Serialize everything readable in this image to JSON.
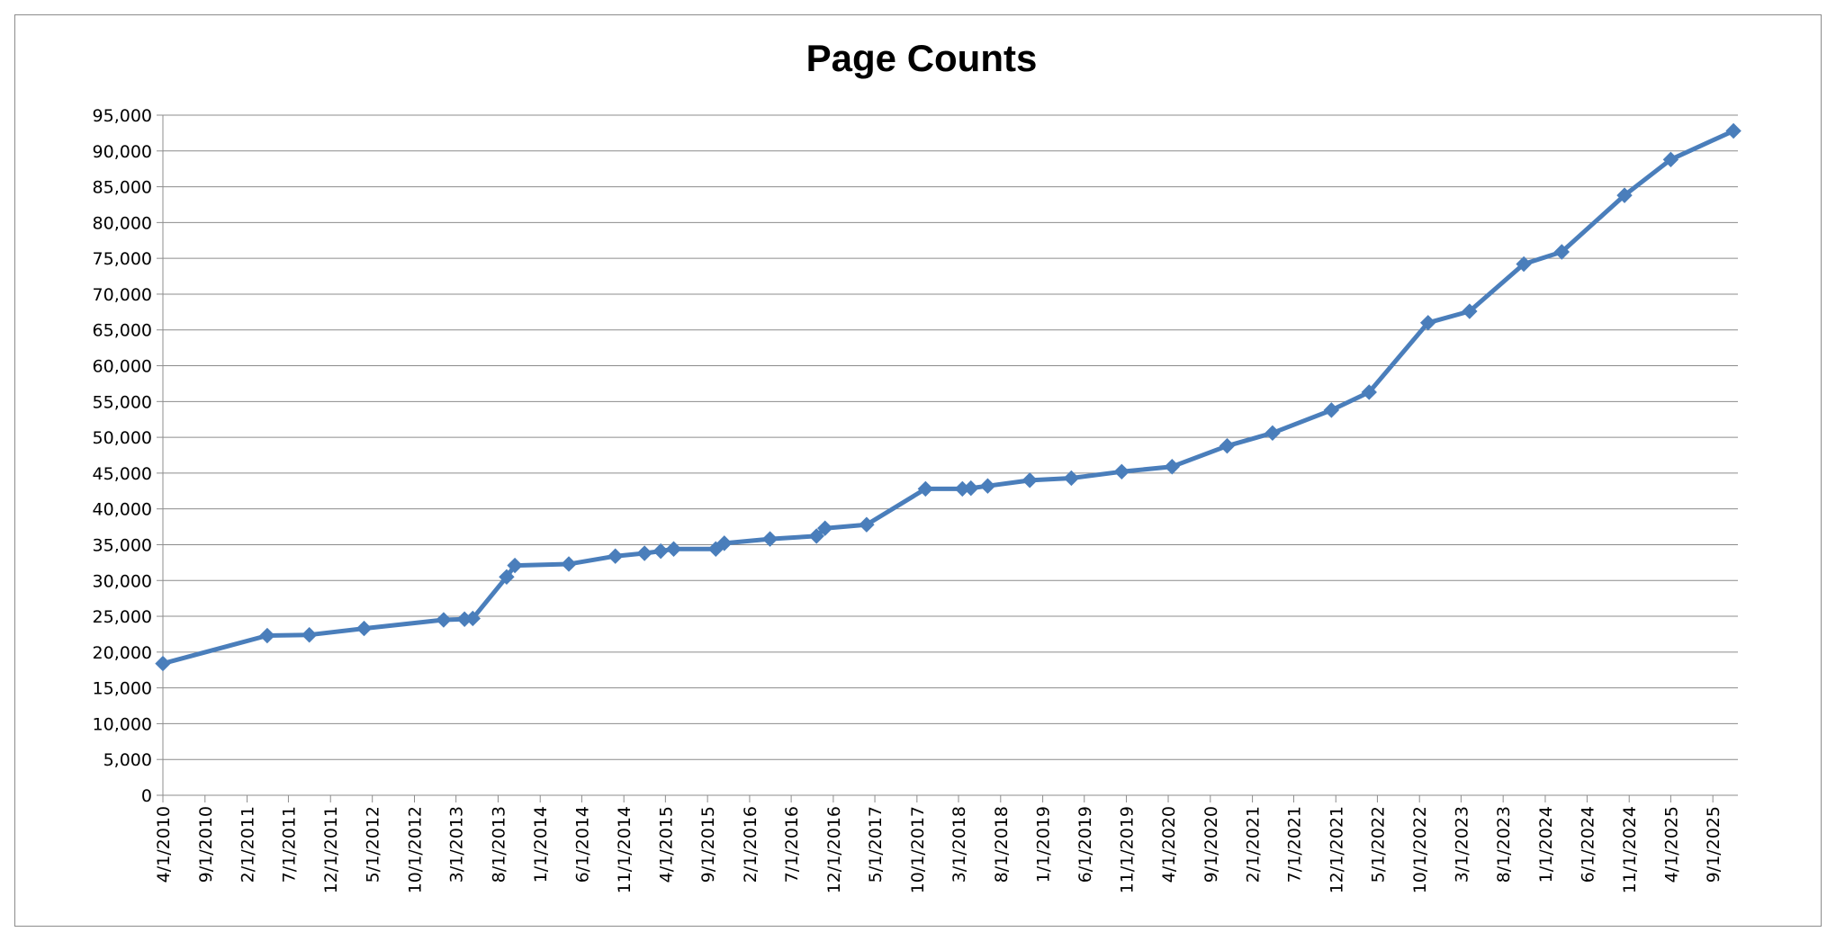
{
  "chart_data": {
    "type": "line",
    "title": "Page Counts",
    "xlabel": "",
    "ylabel": "",
    "ylim": [
      0,
      95000
    ],
    "y_ticks": [
      0,
      5000,
      10000,
      15000,
      20000,
      25000,
      30000,
      35000,
      40000,
      45000,
      50000,
      55000,
      60000,
      65000,
      70000,
      75000,
      80000,
      85000,
      90000,
      95000
    ],
    "y_tick_labels": [
      "0",
      "5,000",
      "10,000",
      "15,000",
      "20,000",
      "25,000",
      "30,000",
      "35,000",
      "40,000",
      "45,000",
      "50,000",
      "55,000",
      "60,000",
      "65,000",
      "70,000",
      "75,000",
      "80,000",
      "85,000",
      "90,000",
      "95,000"
    ],
    "xlim": [
      "4/1/2010",
      "12/1/2025"
    ],
    "x_tick_labels": [
      "4/1/2010",
      "9/1/2010",
      "2/1/2011",
      "7/1/2011",
      "12/1/2011",
      "5/1/2012",
      "10/1/2012",
      "3/1/2013",
      "8/1/2013",
      "1/1/2014",
      "6/1/2014",
      "11/1/2014",
      "4/1/2015",
      "9/1/2015",
      "2/1/2016",
      "7/1/2016",
      "12/1/2016",
      "5/1/2017",
      "10/1/2017",
      "3/1/2018",
      "8/1/2018",
      "1/1/2019",
      "6/1/2019",
      "11/1/2019",
      "4/1/2020",
      "9/1/2020",
      "2/1/2021",
      "7/1/2021",
      "12/1/2021",
      "5/1/2022",
      "10/1/2022",
      "3/1/2023",
      "8/1/2023",
      "1/1/2024",
      "6/1/2024",
      "11/1/2024",
      "4/1/2025",
      "9/1/2025"
    ],
    "grid": true,
    "legend": "none",
    "series": [
      {
        "color": "#4a7ebb",
        "points": [
          {
            "x": "4/1/2010",
            "y": 18400
          },
          {
            "x": "4/15/2011",
            "y": 22300
          },
          {
            "x": "9/15/2011",
            "y": 22400
          },
          {
            "x": "4/1/2012",
            "y": 23300
          },
          {
            "x": "1/15/2013",
            "y": 24500
          },
          {
            "x": "4/1/2013",
            "y": 24600
          },
          {
            "x": "5/1/2013",
            "y": 24700
          },
          {
            "x": "9/1/2013",
            "y": 30500
          },
          {
            "x": "10/1/2013",
            "y": 32100
          },
          {
            "x": "4/15/2014",
            "y": 32300
          },
          {
            "x": "10/1/2014",
            "y": 33400
          },
          {
            "x": "1/15/2015",
            "y": 33800
          },
          {
            "x": "3/15/2015",
            "y": 34100
          },
          {
            "x": "5/1/2015",
            "y": 34400
          },
          {
            "x": "10/1/2015",
            "y": 34400
          },
          {
            "x": "11/1/2015",
            "y": 35200
          },
          {
            "x": "4/15/2016",
            "y": 35800
          },
          {
            "x": "10/1/2016",
            "y": 36200
          },
          {
            "x": "11/1/2016",
            "y": 37300
          },
          {
            "x": "4/1/2017",
            "y": 37800
          },
          {
            "x": "11/1/2017",
            "y": 42800
          },
          {
            "x": "3/15/2018",
            "y": 42800
          },
          {
            "x": "4/15/2018",
            "y": 42900
          },
          {
            "x": "6/15/2018",
            "y": 43200
          },
          {
            "x": "11/15/2018",
            "y": 44000
          },
          {
            "x": "4/15/2019",
            "y": 44300
          },
          {
            "x": "10/15/2019",
            "y": 45200
          },
          {
            "x": "4/15/2020",
            "y": 45900
          },
          {
            "x": "11/1/2020",
            "y": 48800
          },
          {
            "x": "4/15/2021",
            "y": 50600
          },
          {
            "x": "11/15/2021",
            "y": 53800
          },
          {
            "x": "4/1/2022",
            "y": 56300
          },
          {
            "x": "11/1/2022",
            "y": 66000
          },
          {
            "x": "4/1/2023",
            "y": 67600
          },
          {
            "x": "10/15/2023",
            "y": 74200
          },
          {
            "x": "3/1/2024",
            "y": 75900
          },
          {
            "x": "10/15/2024",
            "y": 83800
          },
          {
            "x": "4/1/2025",
            "y": 88800
          },
          {
            "x": "11/15/2025",
            "y": 92800
          }
        ]
      }
    ]
  }
}
